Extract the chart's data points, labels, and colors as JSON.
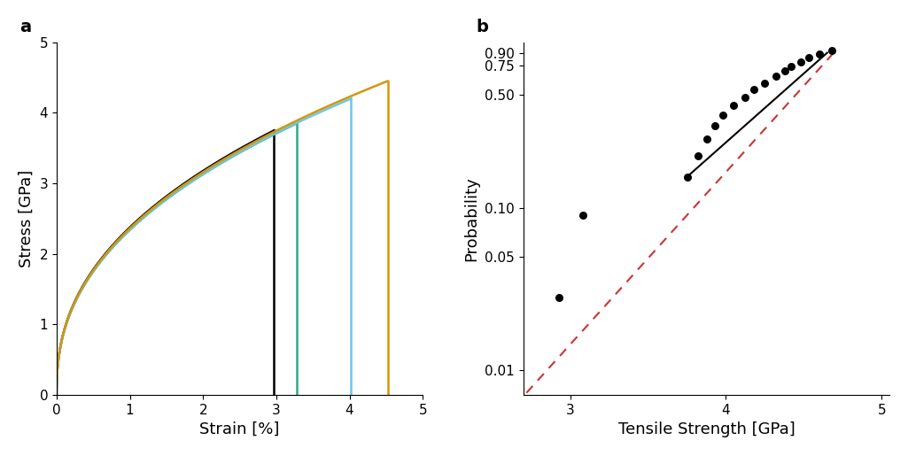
{
  "panel_a": {
    "title": "a",
    "xlabel": "Strain [%]",
    "ylabel": "Stress [GPa]",
    "xlim": [
      0,
      5
    ],
    "ylim": [
      0,
      5
    ],
    "xticks": [
      0,
      1,
      2,
      3,
      4,
      5
    ],
    "yticks": [
      0,
      1,
      2,
      3,
      4,
      5
    ],
    "curves": [
      {
        "color": "#000000",
        "break_strain": 2.97,
        "peak_stress": 3.75,
        "k": 0.42
      },
      {
        "color": "#2aaa88",
        "break_strain": 3.28,
        "peak_stress": 3.85,
        "k": 0.42
      },
      {
        "color": "#6ec6e8",
        "break_strain": 4.02,
        "peak_stress": 4.2,
        "k": 0.42
      },
      {
        "color": "#d4960a",
        "break_strain": 4.52,
        "peak_stress": 4.45,
        "k": 0.42
      }
    ]
  },
  "panel_b": {
    "title": "b",
    "xlabel": "Tensile Strength [GPa]",
    "ylabel": "Probability",
    "xlim": [
      2.7,
      5.05
    ],
    "ylim_log": [
      0.007,
      1.05
    ],
    "xticks": [
      3,
      4,
      5
    ],
    "ytick_vals": [
      0.01,
      0.05,
      0.1,
      0.5,
      0.75,
      0.9
    ],
    "ytick_labels": [
      "0.01",
      "0.05",
      "0.10",
      "0.50",
      "0.75",
      "0.90"
    ],
    "data_points_x": [
      2.93,
      3.08,
      3.75,
      3.82,
      3.88,
      3.93,
      3.98,
      4.05,
      4.12,
      4.18,
      4.25,
      4.32,
      4.38,
      4.42,
      4.48,
      4.53,
      4.6,
      4.68
    ],
    "data_points_y": [
      0.028,
      0.09,
      0.155,
      0.21,
      0.265,
      0.32,
      0.375,
      0.43,
      0.48,
      0.535,
      0.59,
      0.645,
      0.7,
      0.745,
      0.79,
      0.84,
      0.885,
      0.93
    ],
    "fit_line_color": "#000000",
    "dashed_line_color": "#cc3333",
    "fit_x_start": 3.75,
    "fit_x_end": 4.65,
    "fit_y_start": 0.155,
    "fit_y_end": 0.905,
    "dash_x_start": 2.72,
    "dash_x_end": 4.72,
    "dash_y_start": 0.0072,
    "dash_y_end": 0.97
  }
}
